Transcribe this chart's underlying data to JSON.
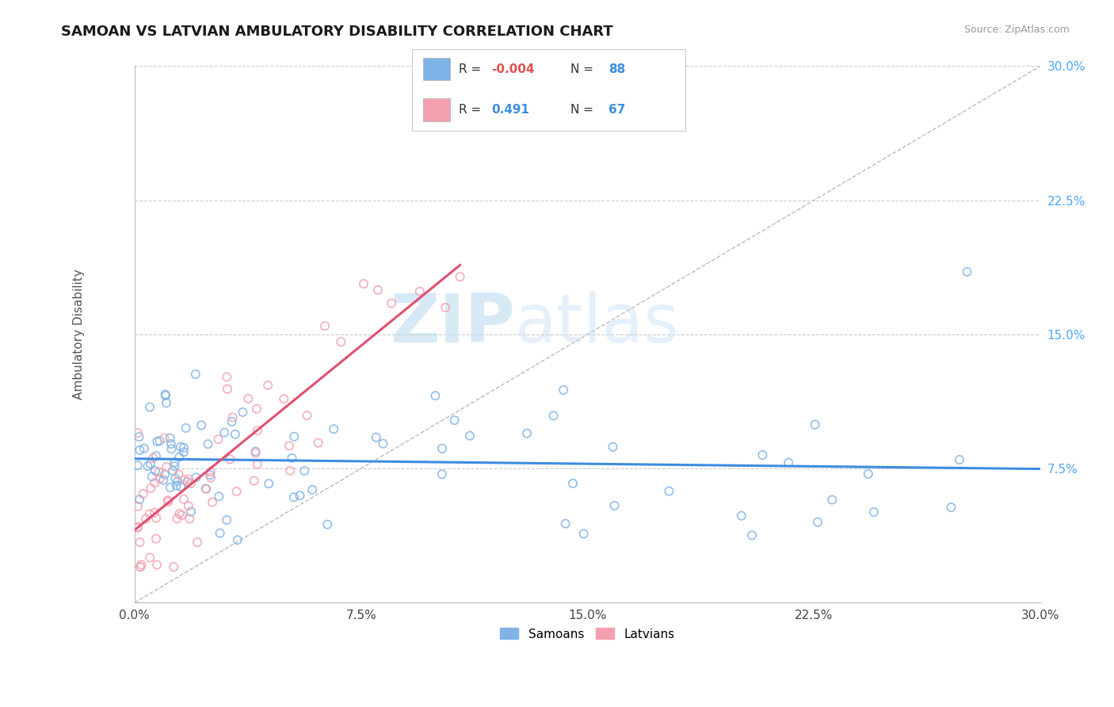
{
  "title": "SAMOAN VS LATVIAN AMBULATORY DISABILITY CORRELATION CHART",
  "source_text": "Source: ZipAtlas.com",
  "ylabel": "Ambulatory Disability",
  "xlim": [
    0.0,
    0.3
  ],
  "ylim": [
    0.0,
    0.3
  ],
  "xticks": [
    0.0,
    0.075,
    0.15,
    0.225,
    0.3
  ],
  "yticks": [
    0.0,
    0.075,
    0.15,
    0.225,
    0.3
  ],
  "xtick_labels": [
    "0.0%",
    "7.5%",
    "15.0%",
    "22.5%",
    "30.0%"
  ],
  "ytick_labels": [
    "",
    "7.5%",
    "15.0%",
    "22.5%",
    "30.0%"
  ],
  "samoan_color": "#7fb3e8",
  "latvian_color": "#f4a0b0",
  "samoan_R": -0.004,
  "samoan_N": 88,
  "latvian_R": 0.491,
  "latvian_N": 67,
  "background_color": "#ffffff",
  "grid_color": "#cccccc",
  "title_fontsize": 13,
  "axis_label_fontsize": 11,
  "tick_fontsize": 11,
  "watermark_zip": "ZIP",
  "watermark_atlas": "atlas",
  "legend_R1": "-0.004",
  "legend_N1": "88",
  "legend_R2": "0.491",
  "legend_N2": "67"
}
